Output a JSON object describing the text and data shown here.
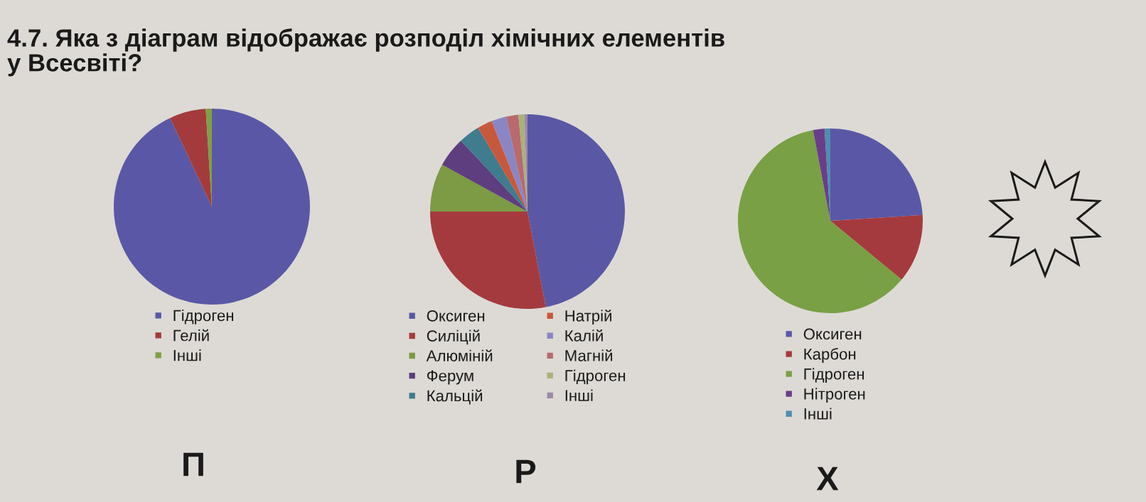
{
  "chart_data": [
    {
      "type": "pie",
      "title": "4.7. Яка з діаграм відображає розподіл хімічних елементів у Всесвіті?",
      "categories": [
        "Гідроген",
        "Гелій",
        "Інші"
      ],
      "values": [
        93,
        6,
        1
      ],
      "colors": [
        "#5a58a6",
        "#a33b3d",
        "#80a040"
      ],
      "legend": "bottom",
      "annotations": [
        "П"
      ]
    },
    {
      "type": "pie",
      "categories": [
        "Оксиген",
        "Силіцій",
        "Алюміній",
        "Ферум",
        "Кальцій",
        "Натрій",
        "Калій",
        "Магній",
        "Гідроген",
        "Інші"
      ],
      "values": [
        47,
        28,
        8,
        5,
        3.5,
        2.5,
        2.5,
        2,
        1,
        0.5
      ],
      "colors": [
        "#5a58a4",
        "#a53a3e",
        "#7d9a45",
        "#5e3e7e",
        "#3f7c8e",
        "#c8583c",
        "#8a86c4",
        "#b86a6e",
        "#a8b27a",
        "#9a8aa8"
      ],
      "legend": "bottom",
      "annotations": [
        "Р"
      ]
    },
    {
      "type": "pie",
      "categories": [
        "Оксиген",
        "Карбон",
        "Гідроген",
        "Нітроген",
        "Інші"
      ],
      "values": [
        24,
        12,
        61,
        2,
        1
      ],
      "colors": [
        "#5a58a6",
        "#a53a3e",
        "#79a044",
        "#6a3d8a",
        "#4f8eb0"
      ],
      "legend": "bottom",
      "annotations": [
        "Х"
      ]
    }
  ]
}
